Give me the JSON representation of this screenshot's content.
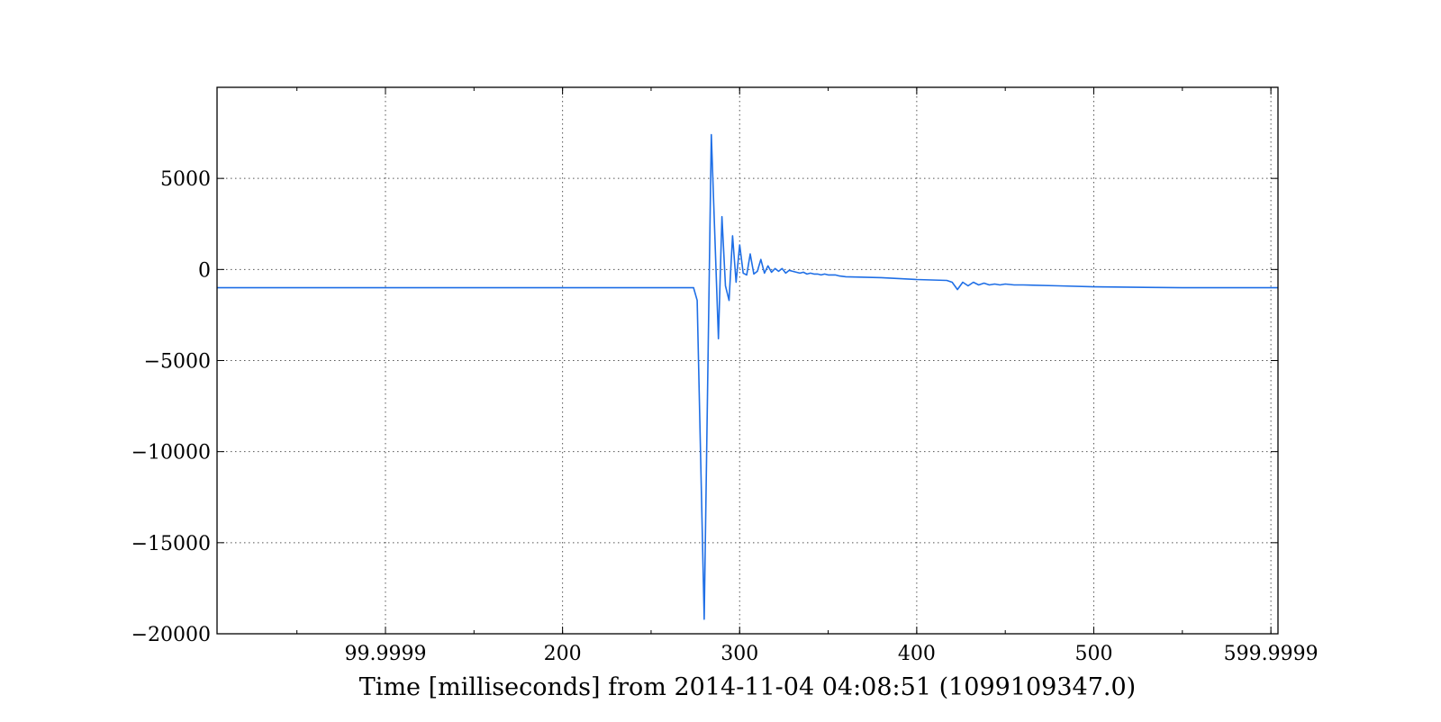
{
  "chart_data": {
    "type": "line",
    "xlabel": "Time [milliseconds] from 2014-11-04 04:08:51 (1099109347.0)",
    "ylabel": "",
    "xlim": [
      4.9,
      604
    ],
    "ylim": [
      -20000,
      10000
    ],
    "grid": true,
    "x_ticks": [
      {
        "value": 99.9999,
        "label": "99.9999"
      },
      {
        "value": 200,
        "label": "200"
      },
      {
        "value": 300,
        "label": "300"
      },
      {
        "value": 400,
        "label": "400"
      },
      {
        "value": 500,
        "label": "500"
      },
      {
        "value": 599.9999,
        "label": "599.9999"
      }
    ],
    "y_ticks": [
      {
        "value": 5000,
        "label": "5000"
      },
      {
        "value": 0,
        "label": "0"
      },
      {
        "value": -5000,
        "label": "−5000"
      },
      {
        "value": -10000,
        "label": "−10000"
      },
      {
        "value": -15000,
        "label": "−15000"
      },
      {
        "value": -20000,
        "label": "−20000"
      }
    ],
    "series": [
      {
        "color": "#1f6fe6",
        "x": [
          4.9,
          20,
          100,
          200,
          240,
          270,
          274,
          276,
          280,
          284,
          288,
          290,
          292,
          294,
          296,
          298,
          300,
          302,
          304,
          306,
          308,
          310,
          312,
          314,
          316,
          318,
          320,
          322,
          324,
          326,
          328,
          330,
          332,
          334,
          336,
          338,
          340,
          342,
          344,
          346,
          348,
          350,
          352,
          354,
          356,
          360,
          380,
          400,
          417,
          420,
          423,
          426,
          429,
          432,
          435,
          438,
          441,
          444,
          447,
          450,
          455,
          460,
          480,
          500,
          550,
          604
        ],
        "y": [
          -1000,
          -1000,
          -1000,
          -1000,
          -1000,
          -1000,
          -1000,
          -1700,
          -19200,
          7400,
          -3800,
          2900,
          -900,
          -1700,
          1850,
          -700,
          1350,
          -200,
          -300,
          850,
          -250,
          -100,
          550,
          -200,
          200,
          -150,
          50,
          -100,
          50,
          -200,
          -50,
          -100,
          -150,
          -200,
          -150,
          -250,
          -200,
          -250,
          -250,
          -300,
          -250,
          -300,
          -300,
          -300,
          -350,
          -400,
          -450,
          -550,
          -600,
          -700,
          -1100,
          -700,
          -900,
          -700,
          -850,
          -750,
          -850,
          -800,
          -850,
          -800,
          -850,
          -850,
          -900,
          -950,
          -1000,
          -1000
        ]
      }
    ]
  }
}
